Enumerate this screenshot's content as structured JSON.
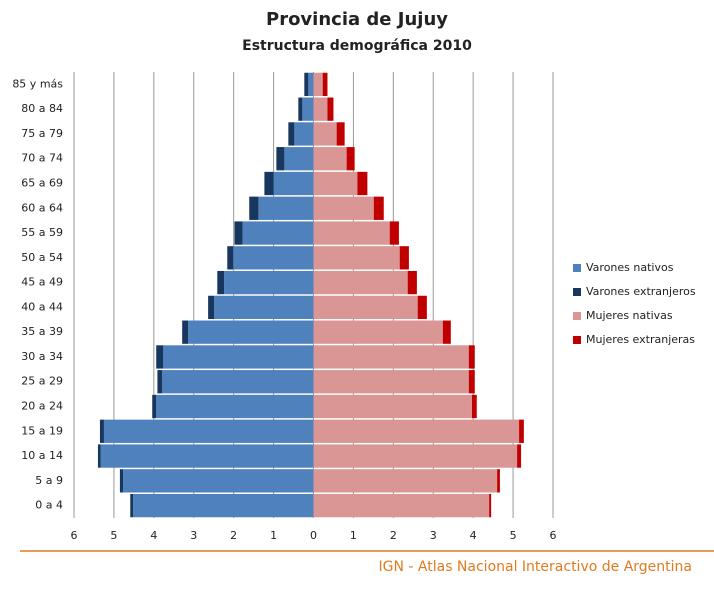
{
  "chart_data": {
    "type": "pyramid",
    "title": "Provincia de Jujuy",
    "subtitle": "Estructura demográfica 2010",
    "footer": "IGN - Atlas Nacional Interactivo de Argentina",
    "categories": [
      "0 a 4",
      "5 a 9",
      "10 a 14",
      "15 a 19",
      "20 a 24",
      "25 a 29",
      "30 a 34",
      "35 a 39",
      "40 a 44",
      "45 a 49",
      "50 a 54",
      "55 a 59",
      "60 a 64",
      "65 a 69",
      "70 a 74",
      "75 a 79",
      "80 a 84",
      "85 y más"
    ],
    "series": [
      {
        "name": "Varones nativos",
        "color": "#4f81bd",
        "side": "left",
        "values": [
          4.52,
          4.77,
          5.33,
          5.25,
          3.94,
          3.79,
          3.77,
          3.14,
          2.49,
          2.24,
          2.01,
          1.78,
          1.38,
          1.0,
          0.73,
          0.48,
          0.28,
          0.13
        ]
      },
      {
        "name": "Varones extranjeros",
        "color": "#17375e",
        "side": "left",
        "values": [
          0.07,
          0.08,
          0.07,
          0.1,
          0.1,
          0.12,
          0.17,
          0.15,
          0.15,
          0.17,
          0.15,
          0.2,
          0.23,
          0.23,
          0.2,
          0.15,
          0.1,
          0.1
        ]
      },
      {
        "name": "Mujeres nativas",
        "color": "#d99694",
        "side": "right",
        "values": [
          4.4,
          4.6,
          5.1,
          5.15,
          3.97,
          3.89,
          3.89,
          3.24,
          2.61,
          2.36,
          2.16,
          1.91,
          1.51,
          1.1,
          0.83,
          0.58,
          0.35,
          0.23
        ]
      },
      {
        "name": "Mujeres extranjeras",
        "color": "#c00000",
        "side": "right",
        "values": [
          0.05,
          0.07,
          0.1,
          0.12,
          0.12,
          0.15,
          0.15,
          0.2,
          0.23,
          0.23,
          0.23,
          0.23,
          0.25,
          0.25,
          0.2,
          0.2,
          0.15,
          0.12
        ]
      }
    ],
    "xlim": [
      -6,
      6
    ],
    "xticks": [
      {
        "value": -6,
        "label": "6"
      },
      {
        "value": -5,
        "label": "5"
      },
      {
        "value": -4,
        "label": "4"
      },
      {
        "value": -3,
        "label": "3"
      },
      {
        "value": -2,
        "label": "2"
      },
      {
        "value": -1,
        "label": "1"
      },
      0,
      1,
      2,
      3,
      4,
      5,
      6
    ],
    "grid": true,
    "legend": "right"
  }
}
